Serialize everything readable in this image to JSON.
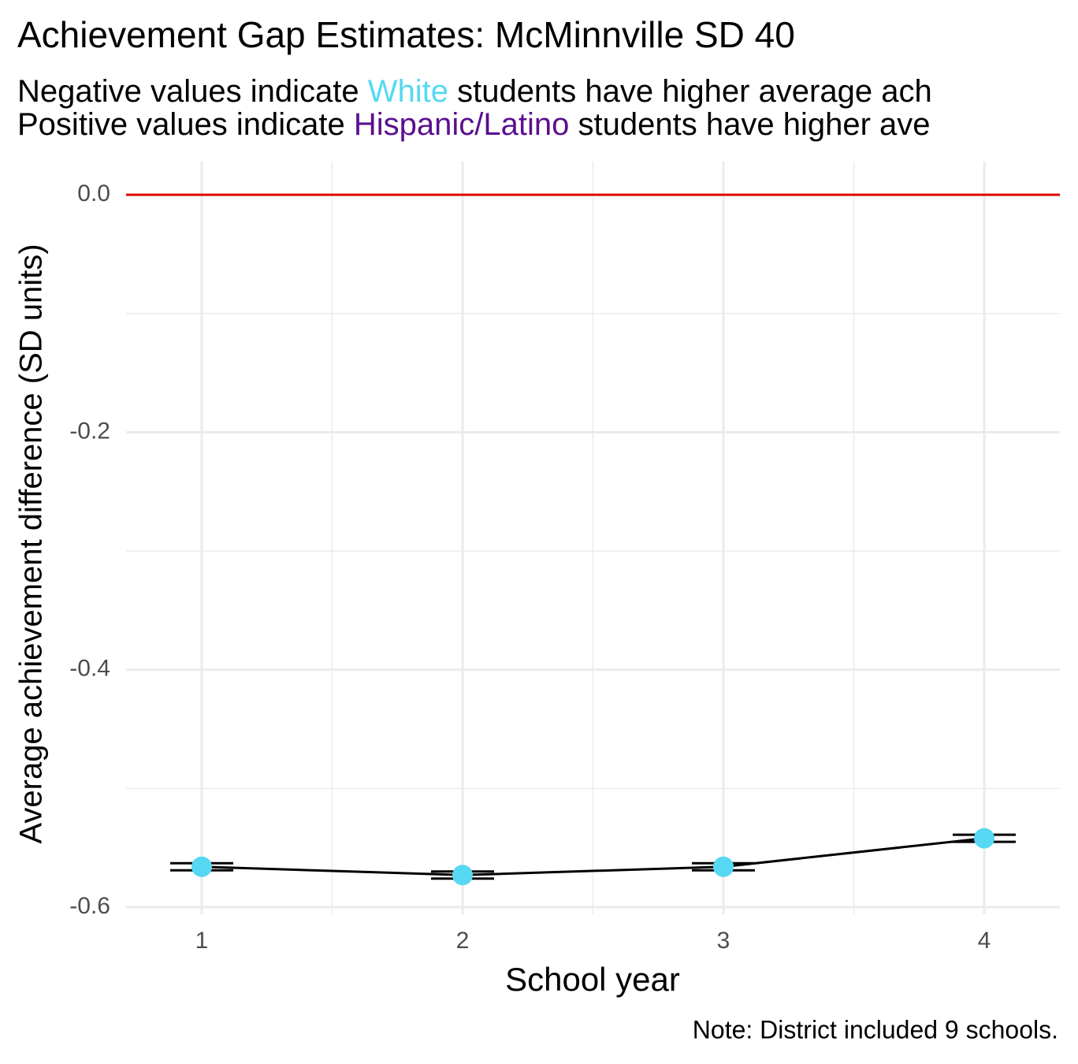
{
  "chart_data": {
    "type": "line",
    "title": "Achievement Gap Estimates: McMinnville SD 40",
    "subtitle_lines": [
      [
        "Negative values indicate ",
        "White",
        " students have higher average ach"
      ],
      [
        "Positive values indicate ",
        "Hispanic/Latino",
        " students have higher ave"
      ]
    ],
    "subtitle_colors": [
      "#000000",
      "#56d8f2",
      "#000000"
    ],
    "subtitle_colors_2": [
      "#000000",
      "#5b0f8f",
      "#000000"
    ],
    "x_label": "School year",
    "y_label": "Average achievement difference (SD units)",
    "caption": "Note: District included 9 schools.",
    "x": [
      1,
      2,
      3,
      4
    ],
    "values": [
      -0.566,
      -0.573,
      -0.566,
      -0.542
    ],
    "errors": [
      0.003,
      0.003,
      0.003,
      0.003
    ],
    "color": "#56d8f2",
    "line_color": "#000000",
    "hline": 0,
    "hline_color": "#e00000",
    "xlim": [
      0.71,
      4.29
    ],
    "ylim": [
      -0.606,
      0.028
    ],
    "xticks": [
      1,
      2,
      3,
      4
    ],
    "yticks": [
      {
        "value": 0,
        "label": "0.0"
      },
      {
        "value": -0.2,
        "label": "-0.2"
      },
      {
        "value": -0.4,
        "label": "-0.4"
      },
      {
        "value": -0.6,
        "label": "-0.6"
      }
    ],
    "minor_xticks": [
      1.5,
      2.5,
      3.5
    ],
    "minor_yticks": [
      -0.1,
      -0.3,
      -0.5
    ],
    "grid": true
  }
}
